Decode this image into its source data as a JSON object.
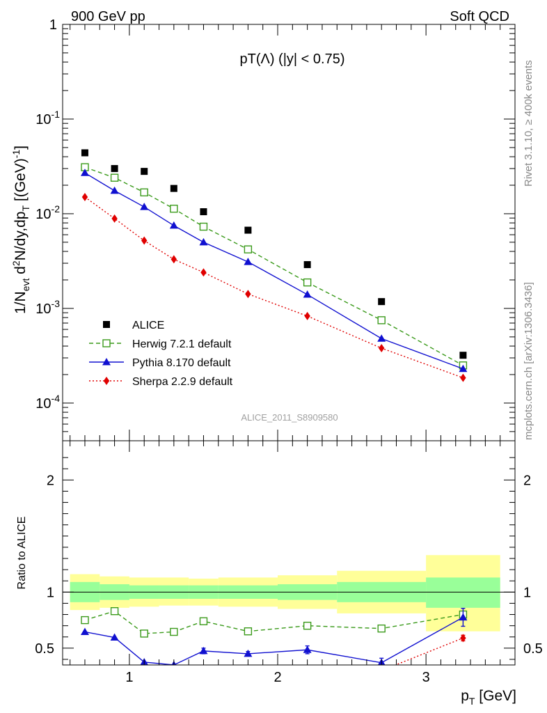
{
  "header": {
    "left_label": "900 GeV pp",
    "right_label": "Soft QCD",
    "plot_title": "pT(Λ) (|y| < 0.75)",
    "watermark": "ALICE_2011_S8909580",
    "side_label_top": "Rivet 3.1.10, ≥ 400k events",
    "side_label_bottom": "mcplots.cern.ch [arXiv:1306.3436]"
  },
  "colors": {
    "alice": "#000000",
    "herwig": "#3a9a1a",
    "pythia": "#1010d0",
    "sherpa": "#e00000",
    "band_inner": "#99ff99",
    "band_outer": "#ffff99"
  },
  "chart_data": [
    {
      "type": "scatter",
      "title": "pT(Λ) (|y| < 0.75)",
      "ylabel": "1/N_evt d²N/dy,dp_T [(GeV)⁻¹]",
      "xlim": [
        0.55,
        3.6
      ],
      "ylim": [
        4e-05,
        1
      ],
      "yscale": "log",
      "ytick_labels": [
        "1",
        "10^-1",
        "10^-2",
        "10^-3",
        "10^-4"
      ],
      "legend_position": "bottom-left",
      "series": [
        {
          "name": "ALICE",
          "marker": "filled-square",
          "style": "points",
          "x": [
            0.7,
            0.9,
            1.1,
            1.3,
            1.5,
            1.8,
            2.2,
            2.7,
            3.25
          ],
          "y": [
            0.044,
            0.03,
            0.028,
            0.0185,
            0.0105,
            0.0067,
            0.0029,
            0.00118,
            0.00032
          ]
        },
        {
          "name": "Herwig 7.2.1 default",
          "marker": "open-square",
          "style": "dashed",
          "x": [
            0.7,
            0.9,
            1.1,
            1.3,
            1.5,
            1.8,
            2.2,
            2.7,
            3.25
          ],
          "y": [
            0.031,
            0.024,
            0.0168,
            0.0113,
            0.0073,
            0.0042,
            0.00188,
            0.00075,
            0.00025
          ]
        },
        {
          "name": "Pythia 8.170 default",
          "marker": "filled-triangle",
          "style": "solid",
          "x": [
            0.7,
            0.9,
            1.1,
            1.3,
            1.5,
            1.8,
            2.2,
            2.7,
            3.25
          ],
          "y": [
            0.027,
            0.0175,
            0.0118,
            0.0075,
            0.005,
            0.0031,
            0.0014,
            0.00048,
            0.00023
          ]
        },
        {
          "name": "Sherpa 2.2.9 default",
          "marker": "filled-diamond",
          "style": "dotted",
          "x": [
            0.7,
            0.9,
            1.1,
            1.3,
            1.5,
            1.8,
            2.2,
            2.7,
            3.25
          ],
          "y": [
            0.015,
            0.0089,
            0.0052,
            0.0033,
            0.0024,
            0.00142,
            0.00083,
            0.00038,
            0.000185
          ]
        }
      ]
    },
    {
      "type": "scatter",
      "xlabel": "p_T [GeV]",
      "ylabel": "Ratio to ALICE",
      "xlim": [
        0.55,
        3.6
      ],
      "ylim": [
        0.35,
        2.35
      ],
      "x_ticks": [
        1,
        2,
        3
      ],
      "y_ticks": [
        0.5,
        1,
        2
      ],
      "reference_line": 1,
      "bands": {
        "edges": [
          0.6,
          0.8,
          1.0,
          1.2,
          1.4,
          1.6,
          2.0,
          2.4,
          3.0,
          3.5
        ],
        "inner": [
          [
            0.91,
            1.09
          ],
          [
            0.93,
            1.07
          ],
          [
            0.94,
            1.06
          ],
          [
            0.94,
            1.06
          ],
          [
            0.94,
            1.06
          ],
          [
            0.94,
            1.06
          ],
          [
            0.93,
            1.07
          ],
          [
            0.91,
            1.09
          ],
          [
            0.86,
            1.13
          ]
        ],
        "outer": [
          [
            0.84,
            1.16
          ],
          [
            0.86,
            1.14
          ],
          [
            0.87,
            1.13
          ],
          [
            0.88,
            1.13
          ],
          [
            0.88,
            1.12
          ],
          [
            0.87,
            1.13
          ],
          [
            0.85,
            1.15
          ],
          [
            0.81,
            1.19
          ],
          [
            0.65,
            1.33
          ]
        ]
      },
      "series": [
        {
          "name": "Herwig 7.2.1 default",
          "marker": "open-square",
          "style": "dashed",
          "x": [
            0.7,
            0.9,
            1.1,
            1.3,
            1.5,
            1.8,
            2.2,
            2.7,
            3.25
          ],
          "y": [
            0.75,
            0.83,
            0.63,
            0.645,
            0.74,
            0.65,
            0.7,
            0.675,
            0.8
          ]
        },
        {
          "name": "Pythia 8.170 default",
          "marker": "filled-triangle",
          "style": "solid",
          "x": [
            0.7,
            0.9,
            1.1,
            1.3,
            1.5,
            1.8,
            2.2,
            2.7,
            3.25
          ],
          "y": [
            0.645,
            0.595,
            0.375,
            0.35,
            0.475,
            0.45,
            0.485,
            0.37,
            0.775
          ],
          "err": [
            0.008,
            0.008,
            0.012,
            0.012,
            0.025,
            0.02,
            0.035,
            0.04,
            0.08
          ]
        },
        {
          "name": "Sherpa 2.2.9 default",
          "marker": "filled-diamond",
          "style": "dotted",
          "x": [
            2.7,
            3.25
          ],
          "y": [
            0.3,
            0.59
          ],
          "err": [
            0,
            0.025
          ]
        }
      ]
    }
  ]
}
